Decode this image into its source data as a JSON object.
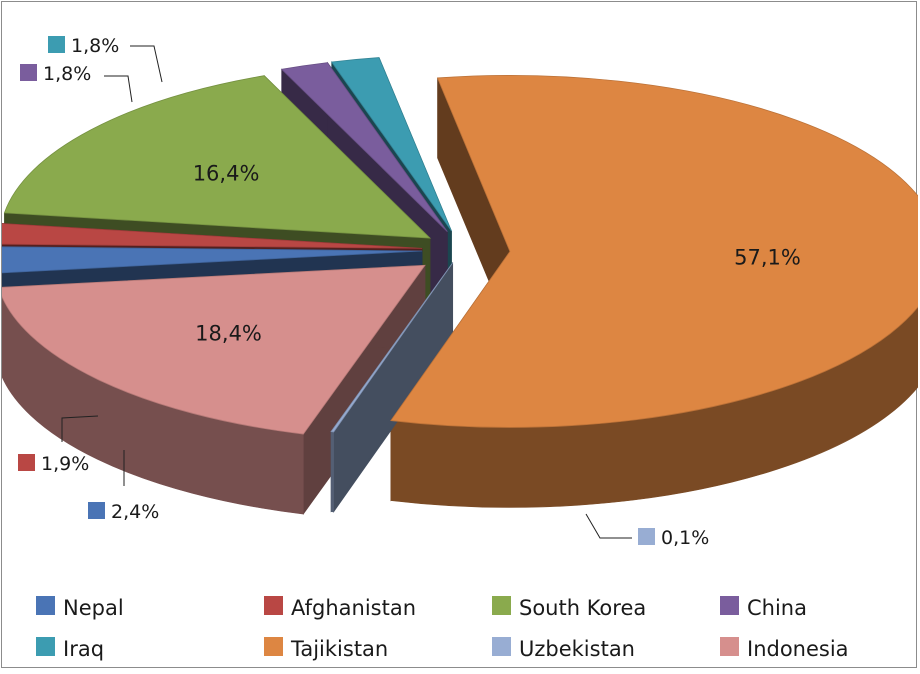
{
  "chart_data": {
    "type": "pie",
    "style": "3d-exploded",
    "title": "",
    "legend_position": "bottom",
    "slices": [
      {
        "name": "Tajikistan",
        "value": 57.1,
        "label": "57,1%",
        "color": "#DD8642"
      },
      {
        "name": "Uzbekistan",
        "value": 0.1,
        "label": "0,1%",
        "color": "#98ADD3"
      },
      {
        "name": "Indonesia",
        "value": 18.4,
        "label": "18,4%",
        "color": "#D68F8D"
      },
      {
        "name": "Nepal",
        "value": 2.4,
        "label": "2,4%",
        "color": "#4A74B5"
      },
      {
        "name": "Afghanistan",
        "value": 1.9,
        "label": "1,9%",
        "color": "#B94744"
      },
      {
        "name": "South Korea",
        "value": 16.4,
        "label": "16,4%",
        "color": "#8AAA4D"
      },
      {
        "name": "China",
        "value": 1.8,
        "label": "1,8%",
        "color": "#7A5D9D"
      },
      {
        "name": "Iraq",
        "value": 1.8,
        "label": "1,8%",
        "color": "#3C9CB1"
      }
    ],
    "legend": [
      "Nepal",
      "Afghanistan",
      "South Korea",
      "China",
      "Iraq",
      "Tajikistan",
      "Uzbekistan",
      "Indonesia"
    ]
  }
}
